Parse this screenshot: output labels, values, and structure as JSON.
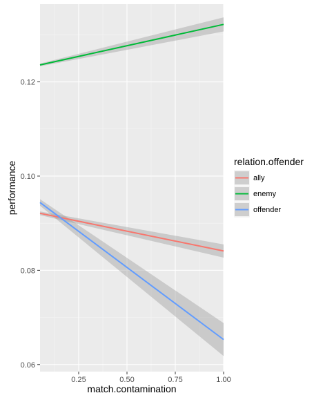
{
  "chart_data": {
    "type": "line",
    "xlabel": "match.contamination",
    "ylabel": "performance",
    "xlim": [
      0.05,
      1.0
    ],
    "ylim": [
      0.0585,
      0.1365
    ],
    "x_ticks": [
      0.25,
      0.5,
      0.75,
      1.0
    ],
    "x_tick_labels": [
      "0.25",
      "0.50",
      "0.75",
      "1.00"
    ],
    "y_ticks": [
      0.06,
      0.08,
      0.1,
      0.12
    ],
    "y_tick_labels": [
      "0.06",
      "0.08",
      "0.10",
      "0.12"
    ],
    "grid": true,
    "legend": {
      "title": "relation.offender",
      "position": "right"
    },
    "series": [
      {
        "name": "ally",
        "color": "#F8766D",
        "x": [
          0.05,
          1.0
        ],
        "y": [
          0.0921,
          0.0841
        ],
        "ci_lower": [
          0.0917,
          0.0827
        ],
        "ci_upper": [
          0.0925,
          0.0855
        ]
      },
      {
        "name": "enemy",
        "color": "#00BA38",
        "x": [
          0.05,
          1.0
        ],
        "y": [
          0.1236,
          0.1322
        ],
        "ci_lower": [
          0.1233,
          0.1307
        ],
        "ci_upper": [
          0.1239,
          0.1337
        ]
      },
      {
        "name": "offender",
        "color": "#619CFF",
        "x": [
          0.05,
          1.0
        ],
        "y": [
          0.0944,
          0.0653
        ],
        "ci_lower": [
          0.0937,
          0.0618
        ],
        "ci_upper": [
          0.0951,
          0.0688
        ]
      }
    ]
  }
}
